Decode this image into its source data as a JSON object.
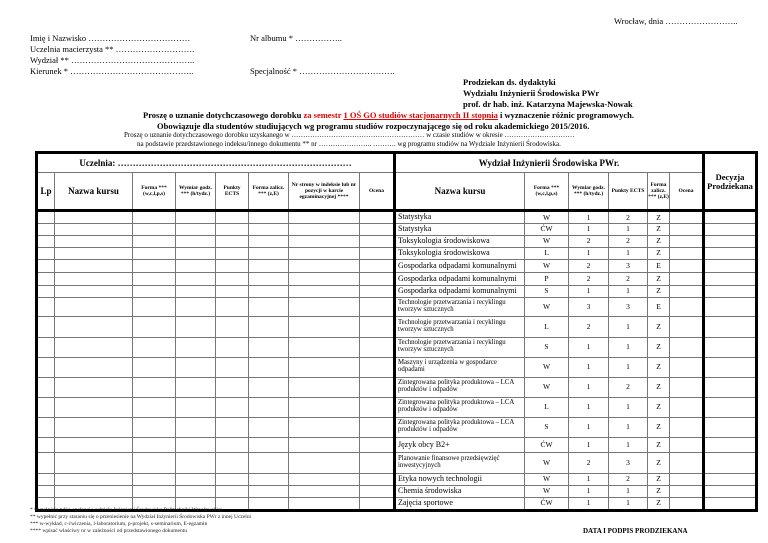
{
  "header": {
    "city_date": "Wrocław, dnia ……………………..",
    "name": "Imię i Nazwisko  ………………………………",
    "album": "Nr albumu * ……………..",
    "university": "Uczelnia macierzysta ** ……………………….",
    "faculty": "Wydział ** ……………………………………..",
    "field": "Kierunek * ……………………………………..",
    "specialty": "Specjalność * …………………………….",
    "addressee": [
      "Prodziekan ds. dydaktyki",
      "Wydziału Inżynierii Środowiska PWr",
      "prof. dr hab. inż. Katarzyna Majewska-Nowak"
    ],
    "request_prefix": "Proszę o uznanie dotychczasowego dorobku ",
    "request_red1": "za semestr ",
    "request_red2": "1 OŚ GO studiów stacjonarnych II stopnia",
    "request_suffix": " i wyznaczenie różnic programowych.",
    "applies": "Obowiązuje dla studentów studiujących wg programu studiów rozpoczynającego się od roku  akademickiego 2015/2016.",
    "line1": "Proszę o uznanie dotychczasowego dorobku uzyskanego w ………………………………………………… w czasie studiów w okresie  …………………………",
    "line2": "na podstawie przedstawionego indeksu/innego dokumentu  ** nr  ………………….. ……….  wg programu studiów na Wydziale Inżynierii Środowiska."
  },
  "table": {
    "left_title": "Uczelnia: ……………………………………………………………………",
    "right_title": "Wydział Inżynierii Środowiska PWr.",
    "decision": "Decyzja Prodziekana",
    "left_cols": [
      "Lp",
      "Nazwa kursu",
      "Forma *** (w,c,l,p,s)",
      "Wymiar godz. *** (h/tydz.)",
      "Punkty ECTS",
      "Forma zalicz. *** (z,E)",
      "Nr strony w indeksie lub nr pozycji w karcie egzaminacyjnej ****",
      "Ocena"
    ],
    "right_cols": [
      "Nazwa kursu",
      "Forma *** (w,c,l,p,s)",
      "Wymiar godz. *** (h/tydz.)",
      "Punkty ECTS",
      "Forma zalicz. *** (z,E)",
      "Ocena"
    ],
    "rows": [
      {
        "name": "Statystyka",
        "form": "W",
        "hours": "1",
        "ects": "2",
        "pass": "Z"
      },
      {
        "name": "Statystyka",
        "form": "ĆW",
        "hours": "1",
        "ects": "1",
        "pass": "Z"
      },
      {
        "name": "Toksykologia środowiskowa",
        "form": "W",
        "hours": "2",
        "ects": "2",
        "pass": "Z"
      },
      {
        "name": "Toksykologia środowiskowa",
        "form": "L",
        "hours": "1",
        "ects": "1",
        "pass": "Z"
      },
      {
        "name": "Gospodarka odpadami komunalnymi",
        "form": "W",
        "hours": "2",
        "ects": "3",
        "pass": "E"
      },
      {
        "name": "Gospodarka odpadami komunalnymi",
        "form": "P",
        "hours": "2",
        "ects": "2",
        "pass": "Z"
      },
      {
        "name": "Gospodarka odpadami komunalnymi",
        "form": "S",
        "hours": "1",
        "ects": "1",
        "pass": "Z"
      },
      {
        "name": "Technologie przetwarzania i recyklingu tworzyw sztucznych",
        "form": "W",
        "hours": "3",
        "ects": "3",
        "pass": "E"
      },
      {
        "name": "Technologie przetwarzania i recyklingu tworzyw sztucznych",
        "form": "L",
        "hours": "2",
        "ects": "1",
        "pass": "Z"
      },
      {
        "name": "Technologie przetwarzania i recyklingu tworzyw sztucznych",
        "form": "S",
        "hours": "1",
        "ects": "1",
        "pass": "Z"
      },
      {
        "name": "Maszyny i urządzenia w gospodarce odpadami",
        "form": "W",
        "hours": "1",
        "ects": "1",
        "pass": "Z"
      },
      {
        "name": "Zintegrowana polityka produktowa – LCA produktów i odpadów",
        "form": "W",
        "hours": "1",
        "ects": "2",
        "pass": "Z"
      },
      {
        "name": "Zintegrowana polityka produktowa – LCA produktów i odpadów",
        "form": "L",
        "hours": "1",
        "ects": "1",
        "pass": "Z"
      },
      {
        "name": "Zintegrowana polityka produktowa – LCA produktów i odpadów",
        "form": "S",
        "hours": "1",
        "ects": "1",
        "pass": "Z"
      },
      {
        "name": "Język obcy B2+",
        "form": "ĆW",
        "hours": "1",
        "ects": "1",
        "pass": "Z"
      },
      {
        "name": "Planowanie finansowe przedsięwzięć inwestycyjnych",
        "form": "W",
        "hours": "2",
        "ects": "3",
        "pass": "Z"
      },
      {
        "name": "Etyka nowych technologii",
        "form": "W",
        "hours": "1",
        "ects": "2",
        "pass": "Z"
      },
      {
        "name": "Chemia środowiska",
        "form": "W",
        "hours": "1",
        "ects": "1",
        "pass": "Z"
      },
      {
        "name": "Zajęcia sportowe",
        "form": "ĆW",
        "hours": "1",
        "ects": "1",
        "pass": "Z"
      }
    ]
  },
  "footnotes": [
    "*      wypełniają  tylko studenci wydziału Inżynierii Środowiska Politechniki Wrocławskiej",
    "**     wypełnić przy staraniu się o przeniesienie na Wydział Inżynierii Środowiska  PWr  z innej  Uczelni",
    "***  w-wykład, c-ćwiczenia, l-laboratorium, p-projekt, s-seminarium, E-egzamin",
    "**** wpisać właściwy nr w zależności od przedstawionego dokumentu"
  ],
  "signature": "DATA I PODPIS PRODZIEKANA"
}
